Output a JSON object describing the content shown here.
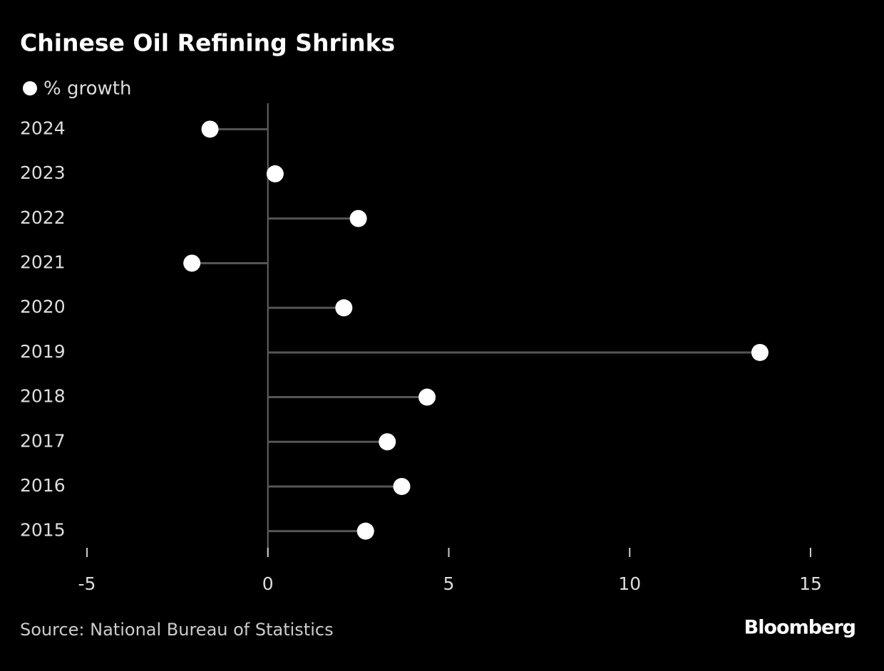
{
  "chart_data": {
    "type": "lollipop",
    "title": "Chinese Oil Refining Shrinks",
    "categories": [
      "2024",
      "2023",
      "2022",
      "2021",
      "2020",
      "2019",
      "2018",
      "2017",
      "2016",
      "2015"
    ],
    "series": [
      {
        "name": "% growth",
        "color": "#ffffff",
        "values": [
          -1.6,
          0.2,
          2.5,
          -2.1,
          2.1,
          13.6,
          4.4,
          3.3,
          3.7,
          2.7
        ]
      }
    ],
    "xlim": [
      -5,
      15
    ],
    "xticks": [
      -5,
      0,
      5,
      10,
      15
    ],
    "source": "Source: National Bureau of Statistics",
    "logo": "Bloomberg"
  }
}
